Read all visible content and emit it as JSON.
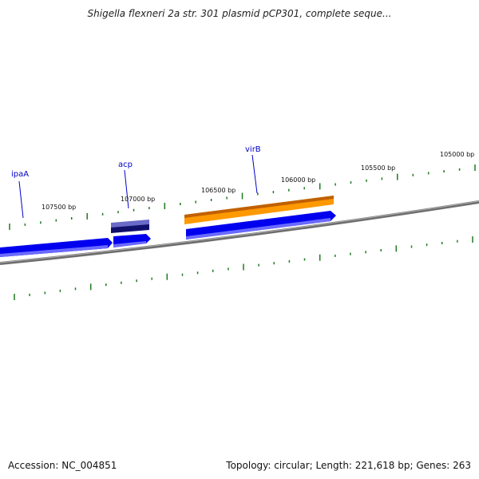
{
  "title": "Shigella flexneri 2a str. 301 plasmid pCP301, complete seque...",
  "footer": {
    "accession": "Accession: NC_004851",
    "summary": "Topology: circular; Length: 221,618 bp; Genes: 263"
  },
  "scale_labels": [
    "107500 bp",
    "107000 bp",
    "106500 bp",
    "106000 bp",
    "105500 bp",
    "105000 bp"
  ],
  "gene_labels": [
    "ipaA",
    "acp",
    "virB"
  ],
  "colors": {
    "backbone": "#808080",
    "tick": "#1f7a1f",
    "gene_blue": "#0000ee",
    "gene_navy": "#1a1a80",
    "gene_orange": "#ff9900",
    "label_text": "#0000cc",
    "label_line": "#0000cc"
  }
}
